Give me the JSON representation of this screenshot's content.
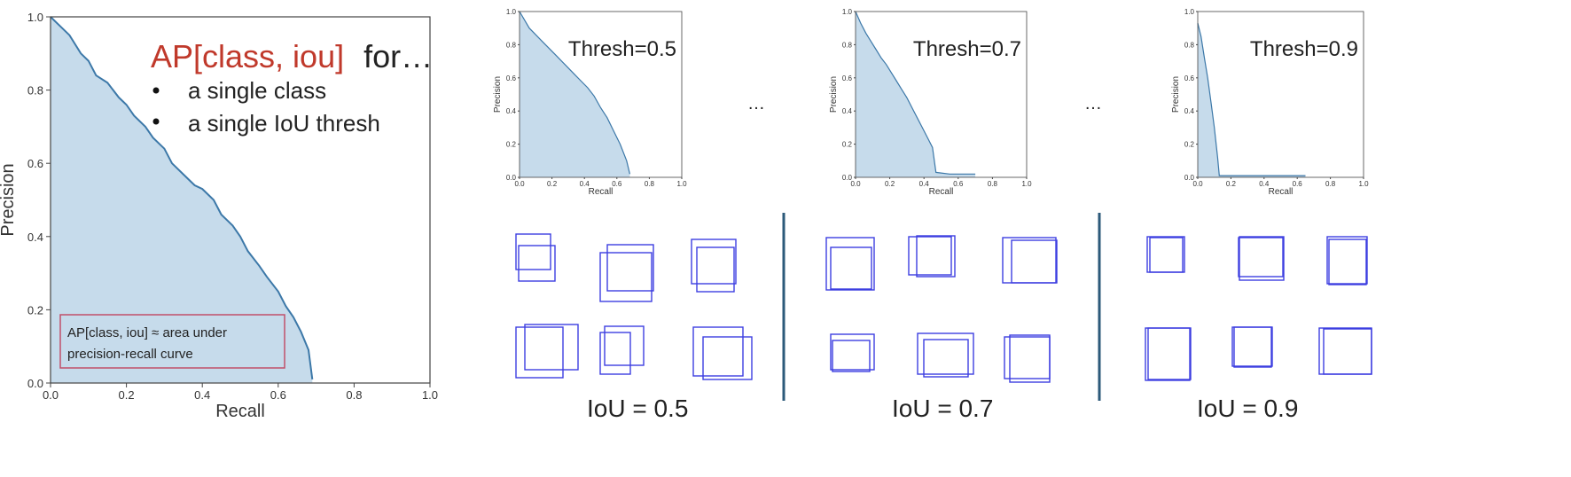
{
  "headline": {
    "ap": "AP[class, iou]",
    "rest": "for…"
  },
  "bullets": [
    "a single class",
    "a single IoU thresh"
  ],
  "note": [
    "AP[class, iou] ≈ area under",
    "precision-recall curve"
  ],
  "ellipses": [
    "…",
    "…"
  ],
  "iou_labels": [
    "IoU = 0.5",
    "IoU = 0.7",
    "IoU = 0.9"
  ],
  "colors": {
    "curve": "#3c78a8",
    "fill": "#c6dbeb",
    "headline_red": "#c0392b",
    "box": "#3d3ee0",
    "note_border": "#c0506a",
    "divider": "#2c5a7a"
  },
  "chart_data": [
    {
      "type": "area",
      "title": "",
      "xlabel": "Recall",
      "ylabel": "Precision",
      "xlim": [
        0,
        1
      ],
      "ylim": [
        0,
        1
      ],
      "xticks": [
        "0.0",
        "0.2",
        "0.4",
        "0.6",
        "0.8",
        "1.0"
      ],
      "yticks": [
        "0.0",
        "0.2",
        "0.4",
        "0.6",
        "0.8",
        "1.0"
      ],
      "grid": false,
      "series": [
        {
          "x": [
            0,
            0.02,
            0.05,
            0.08,
            0.1,
            0.12,
            0.15,
            0.18,
            0.2,
            0.22,
            0.25,
            0.27,
            0.3,
            0.32,
            0.35,
            0.38,
            0.4,
            0.43,
            0.45,
            0.48,
            0.5,
            0.52,
            0.55,
            0.57,
            0.6,
            0.62,
            0.64,
            0.66,
            0.68,
            0.69
          ],
          "y": [
            1.0,
            0.98,
            0.95,
            0.9,
            0.88,
            0.84,
            0.82,
            0.78,
            0.76,
            0.73,
            0.7,
            0.67,
            0.64,
            0.6,
            0.57,
            0.54,
            0.53,
            0.5,
            0.46,
            0.43,
            0.4,
            0.36,
            0.32,
            0.29,
            0.25,
            0.21,
            0.18,
            0.14,
            0.09,
            0.01
          ]
        }
      ]
    },
    {
      "type": "area",
      "title": "Thresh=0.5",
      "xlabel": "Recall",
      "ylabel": "Precision",
      "xlim": [
        0,
        1
      ],
      "ylim": [
        0,
        1
      ],
      "xticks": [
        "0.0",
        "0.2",
        "0.4",
        "0.6",
        "0.8",
        "1.0"
      ],
      "yticks": [
        "0.0",
        "0.2",
        "0.4",
        "0.6",
        "0.8",
        "1.0"
      ],
      "series": [
        {
          "x": [
            0,
            0.03,
            0.06,
            0.1,
            0.14,
            0.18,
            0.22,
            0.26,
            0.3,
            0.34,
            0.38,
            0.42,
            0.46,
            0.5,
            0.54,
            0.58,
            0.62,
            0.66,
            0.68
          ],
          "y": [
            1.0,
            0.95,
            0.9,
            0.86,
            0.82,
            0.78,
            0.74,
            0.7,
            0.66,
            0.62,
            0.58,
            0.54,
            0.49,
            0.42,
            0.36,
            0.28,
            0.2,
            0.1,
            0.02
          ]
        }
      ]
    },
    {
      "type": "area",
      "title": "Thresh=0.7",
      "xlabel": "Recall",
      "ylabel": "Precision",
      "xlim": [
        0,
        1
      ],
      "ylim": [
        0,
        1
      ],
      "xticks": [
        "0.0",
        "0.2",
        "0.4",
        "0.6",
        "0.8",
        "1.0"
      ],
      "yticks": [
        "0.0",
        "0.2",
        "0.4",
        "0.6",
        "0.8",
        "1.0"
      ],
      "series": [
        {
          "x": [
            0,
            0.03,
            0.06,
            0.09,
            0.12,
            0.15,
            0.18,
            0.21,
            0.24,
            0.27,
            0.3,
            0.33,
            0.36,
            0.39,
            0.42,
            0.45,
            0.47,
            0.55,
            0.7
          ],
          "y": [
            1.0,
            0.93,
            0.87,
            0.82,
            0.77,
            0.72,
            0.68,
            0.63,
            0.58,
            0.53,
            0.48,
            0.42,
            0.36,
            0.3,
            0.24,
            0.18,
            0.03,
            0.02,
            0.02
          ]
        }
      ]
    },
    {
      "type": "area",
      "title": "Thresh=0.9",
      "xlabel": "Recall",
      "ylabel": "Precision",
      "xlim": [
        0,
        1
      ],
      "ylim": [
        0,
        1
      ],
      "xticks": [
        "0.0",
        "0.2",
        "0.4",
        "0.6",
        "0.8",
        "1.0"
      ],
      "yticks": [
        "0.0",
        "0.2",
        "0.4",
        "0.6",
        "0.8",
        "1.0"
      ],
      "series": [
        {
          "x": [
            0,
            0.02,
            0.04,
            0.06,
            0.08,
            0.1,
            0.12,
            0.13,
            0.3,
            0.6,
            0.65
          ],
          "y": [
            0.93,
            0.85,
            0.72,
            0.6,
            0.45,
            0.3,
            0.12,
            0.01,
            0.01,
            0.01,
            0.01
          ]
        }
      ]
    }
  ]
}
